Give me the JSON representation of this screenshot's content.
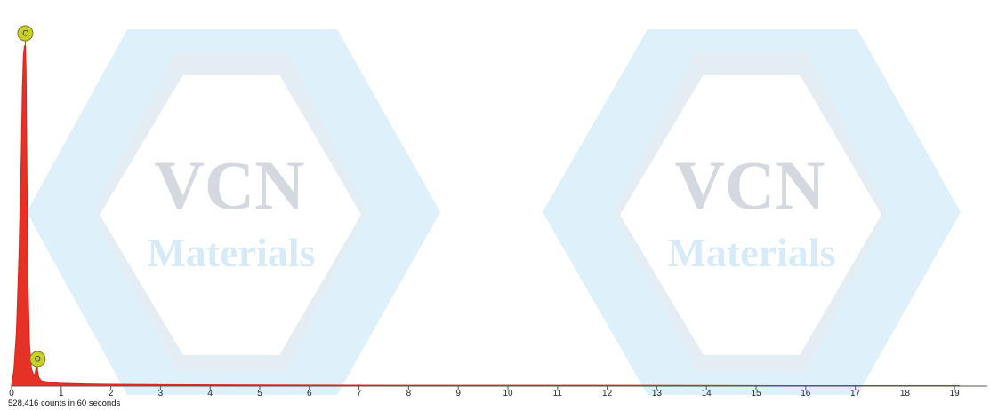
{
  "watermark": {
    "line1": "VCN",
    "line2": "Materials",
    "colors": {
      "hexagon_outer": "#d8eef9",
      "hexagon_inner": "#e6ebef",
      "text_top": "#d3d9df",
      "text_bottom": "#d6eaf7"
    }
  },
  "chart_data": {
    "type": "line",
    "title": "",
    "xlabel": "",
    "ylabel": "",
    "xlim": [
      0,
      19.1
    ],
    "x_ticks": [
      "0",
      "1",
      "2",
      "3",
      "4",
      "5",
      "6",
      "7",
      "8",
      "9",
      "10",
      "11",
      "12",
      "13",
      "14",
      "15",
      "16",
      "17",
      "18",
      "19"
    ],
    "y_relative_max": 1.0,
    "grid": false,
    "series_color": "#e3231b",
    "series_fill_color": "#e63127",
    "series": [
      {
        "x": [
          0.0,
          0.05,
          0.1,
          0.15,
          0.2,
          0.22,
          0.24,
          0.26,
          0.277,
          0.29,
          0.31,
          0.33,
          0.36,
          0.4,
          0.45,
          0.48,
          0.5,
          0.52,
          0.55,
          0.6,
          0.8,
          1.0,
          1.5,
          2.0,
          3.0,
          5.0,
          8.0,
          12.0,
          16.0,
          19.1
        ],
        "y": [
          0.0,
          0.05,
          0.16,
          0.38,
          0.7,
          0.88,
          0.97,
          1.0,
          1.0,
          0.93,
          0.6,
          0.3,
          0.12,
          0.05,
          0.03,
          0.04,
          0.062,
          0.045,
          0.025,
          0.015,
          0.01,
          0.008,
          0.006,
          0.005,
          0.004,
          0.003,
          0.002,
          0.002,
          0.001,
          0.001
        ]
      }
    ],
    "annotations": [
      {
        "label": "C",
        "x": 0.277,
        "color": "#c9d02a"
      },
      {
        "label": "O",
        "x": 0.525,
        "color": "#c9d02a"
      }
    ],
    "footer": "528,416 counts in 60 seconds"
  }
}
